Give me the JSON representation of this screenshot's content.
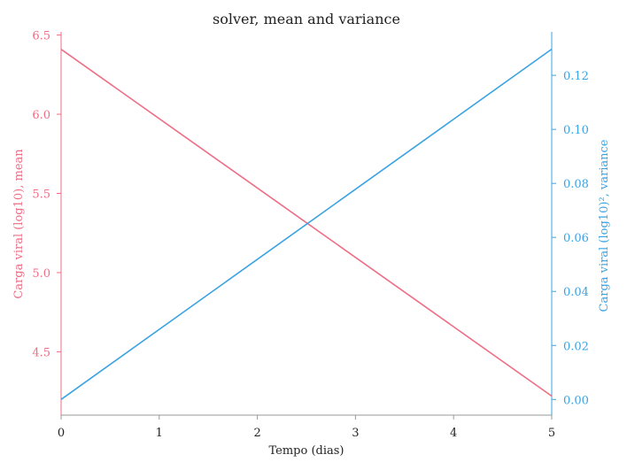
{
  "chart_data": {
    "type": "line",
    "title": "solver, mean and variance",
    "xlabel": "Tempo (dias)",
    "ylabel_left": "Carga viral (log10), mean",
    "ylabel_right": "Carga viral (log10)², variance",
    "xlim": [
      0,
      5
    ],
    "ylim_left": [
      4.1,
      6.52
    ],
    "ylim_right": [
      -0.0058,
      0.1361
    ],
    "x_ticks": [
      "0",
      "1",
      "2",
      "3",
      "4",
      "5"
    ],
    "x_tick_values": [
      0,
      1,
      2,
      3,
      4,
      5
    ],
    "y_ticks_left": [
      "4.5",
      "5.0",
      "5.5",
      "6.0",
      "6.5"
    ],
    "y_tick_values_left": [
      4.5,
      5.0,
      5.5,
      6.0,
      6.5
    ],
    "y_ticks_right": [
      "0.00",
      "0.02",
      "0.04",
      "0.06",
      "0.08",
      "0.10",
      "0.12"
    ],
    "y_tick_values_right": [
      0.0,
      0.02,
      0.04,
      0.06,
      0.08,
      0.1,
      0.12
    ],
    "series": [
      {
        "axis": "left",
        "x": [
          0,
          5
        ],
        "values": [
          6.41,
          4.22
        ],
        "color": "#ee6e85"
      },
      {
        "axis": "right",
        "x": [
          0,
          5
        ],
        "values": [
          0.0,
          0.1297
        ],
        "color": "#3ba3e2"
      }
    ],
    "left_color": "#ee6e85",
    "right_color": "#3ba3e2",
    "axis_color": "#999999",
    "grid": false
  }
}
